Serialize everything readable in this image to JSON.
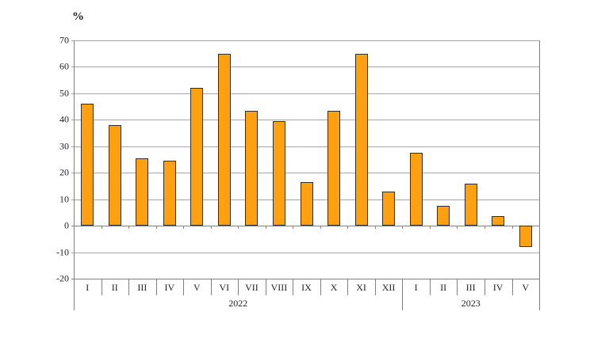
{
  "chart_data": {
    "type": "bar",
    "title": "",
    "ylabel": "%",
    "xlabel": "",
    "ylim": [
      -20,
      70
    ],
    "ytick_step": 10,
    "yticks": [
      70,
      60,
      50,
      40,
      30,
      20,
      10,
      0,
      -10,
      -20
    ],
    "grid": true,
    "legend": "none",
    "bar_color": "#FFA013",
    "bar_border_color": "#2E2E2E",
    "gridline_color": "#A6A6A6",
    "axis_color": "#808080",
    "text_color": "#1F1F1F",
    "groups": [
      {
        "year": "2022",
        "categories": [
          "I",
          "II",
          "III",
          "IV",
          "V",
          "VI",
          "VII",
          "VIII",
          "IX",
          "X",
          "XI",
          "XII"
        ],
        "values": [
          46,
          38,
          25.5,
          24.5,
          52,
          65,
          43.5,
          39.5,
          16.5,
          43.5,
          65,
          13
        ]
      },
      {
        "year": "2023",
        "categories": [
          "I",
          "II",
          "III",
          "IV",
          "V"
        ],
        "values": [
          27.5,
          7.5,
          16,
          3.5,
          -8
        ]
      }
    ]
  }
}
